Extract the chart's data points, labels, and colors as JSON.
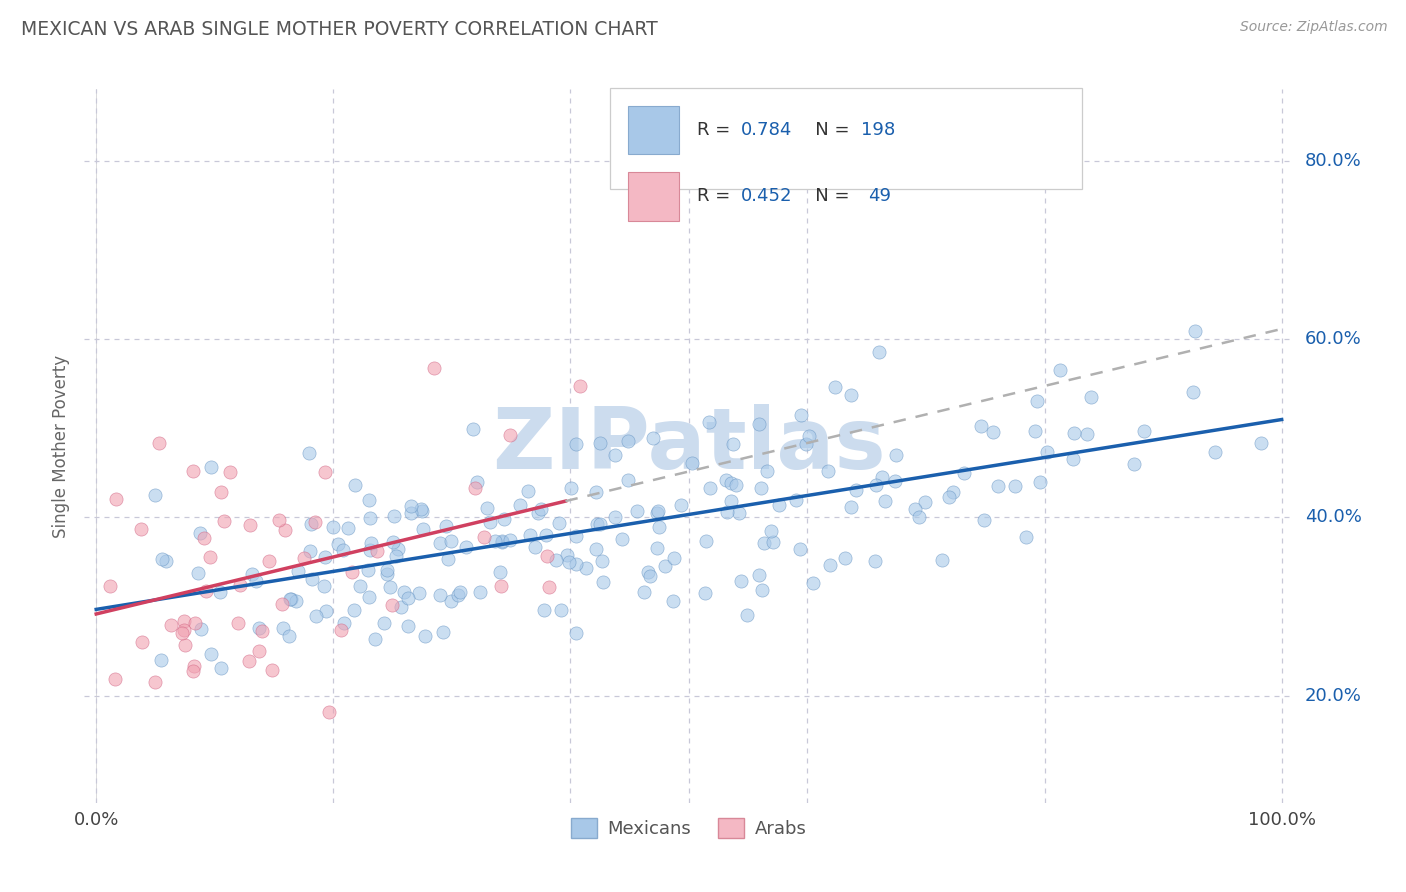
{
  "title": "MEXICAN VS ARAB SINGLE MOTHER POVERTY CORRELATION CHART",
  "source": "Source: ZipAtlas.com",
  "ylabel": "Single Mother Poverty",
  "ytick_values": [
    0.2,
    0.4,
    0.6,
    0.8
  ],
  "xlim": [
    -0.01,
    1.01
  ],
  "ylim": [
    0.08,
    0.88
  ],
  "mexican_R": 0.784,
  "mexican_N": 198,
  "arab_R": 0.452,
  "arab_N": 49,
  "blue_scatter": "#a8c8e8",
  "pink_scatter": "#f0a0b0",
  "blue_scatter_edge": "#6090c0",
  "pink_scatter_edge": "#d06080",
  "blue_legend_patch": "#a8c8e8",
  "pink_legend_patch": "#f4b8c4",
  "trendline_blue": "#1a5fad",
  "trendline_pink": "#d04060",
  "trendline_dashed": "#b0b0b0",
  "value_color": "#1a5fad",
  "label_color": "#333333",
  "title_color": "#555555",
  "source_color": "#999999",
  "ylabel_color": "#666666",
  "grid_color": "#c8c8d8",
  "background": "#ffffff",
  "watermark_text": "ZIPatlas",
  "watermark_color": "#ccdcee",
  "legend_R1": "0.784",
  "legend_N1": "198",
  "legend_R2": "0.452",
  "legend_N2": "49",
  "bottom_legend_1": "Mexicans",
  "bottom_legend_2": "Arabs"
}
